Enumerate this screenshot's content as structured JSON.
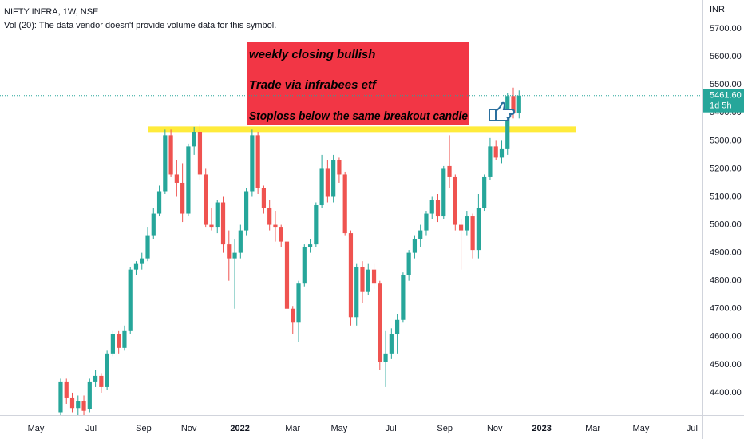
{
  "chart_data": {
    "type": "candlestick",
    "title": "NIFTY INFRA, 1W, NSE",
    "subtitle": "Vol (20): The data vendor doesn't provide volume data for this symbol.",
    "y_axis_label": "INR",
    "categories": [
      null,
      null,
      null,
      null,
      null,
      null,
      null,
      null,
      null,
      null,
      null,
      null,
      null,
      null,
      null,
      null,
      null,
      null,
      null,
      null,
      null,
      null,
      null,
      null,
      null,
      null,
      null,
      null,
      null,
      null,
      null,
      null,
      null,
      null,
      null,
      null,
      null,
      null,
      null,
      null,
      null,
      null,
      null,
      null,
      null,
      null,
      null,
      null,
      null,
      null,
      null,
      null,
      null,
      null,
      null,
      null,
      null,
      null,
      null,
      null,
      null,
      null,
      null,
      null,
      null,
      null,
      null,
      null,
      null,
      null,
      null,
      null,
      null,
      null,
      null,
      null,
      null,
      null,
      null,
      null
    ],
    "open": [
      4330,
      4440,
      4380,
      4345,
      4370,
      4340,
      4440,
      4460,
      4420,
      4540,
      4610,
      4560,
      4620,
      4840,
      4860,
      4880,
      4960,
      5040,
      5120,
      5320,
      5180,
      5150,
      5040,
      5280,
      5330,
      5180,
      5000,
      4990,
      5080,
      4930,
      4880,
      4900,
      4980,
      5120,
      5320,
      5130,
      5060,
      5000,
      4990,
      4940,
      4700,
      4650,
      4790,
      4920,
      4930,
      5070,
      5200,
      5100,
      5230,
      5180,
      4970,
      4670,
      4850,
      4760,
      4840,
      4790,
      4510,
      4540,
      4610,
      4660,
      4820,
      4900,
      4950,
      4980,
      5040,
      5090,
      5030,
      5210,
      5170,
      5000,
      4980,
      5030,
      4910,
      5060,
      5170,
      5280,
      5240,
      5270,
      5460,
      5400
    ],
    "high": [
      4450,
      4450,
      4400,
      4390,
      4390,
      4450,
      4480,
      4470,
      4550,
      4620,
      4620,
      4640,
      4850,
      4870,
      4900,
      4990,
      5060,
      5140,
      5340,
      5340,
      5230,
      5220,
      5290,
      5350,
      5360,
      5200,
      5060,
      5090,
      5100,
      4980,
      4950,
      5000,
      5130,
      5340,
      5330,
      5140,
      5090,
      5050,
      5000,
      4950,
      4710,
      4800,
      4930,
      4950,
      5080,
      5250,
      5230,
      5250,
      5240,
      5190,
      4980,
      4860,
      4870,
      4860,
      4860,
      4800,
      4620,
      4630,
      4680,
      4830,
      4910,
      4960,
      5000,
      5050,
      5100,
      5110,
      5210,
      5320,
      5180,
      5020,
      5050,
      5040,
      5110,
      5180,
      5310,
      5300,
      5300,
      5470,
      5490,
      5480
    ],
    "low": [
      4320,
      4360,
      4330,
      4320,
      4320,
      4330,
      4420,
      4400,
      4410,
      4530,
      4540,
      4550,
      4610,
      4820,
      4840,
      4870,
      4950,
      5030,
      5110,
      5170,
      5100,
      5010,
      5030,
      5250,
      5160,
      4990,
      4980,
      4970,
      4900,
      4800,
      4700,
      4880,
      4960,
      5100,
      5110,
      5040,
      4980,
      4940,
      4920,
      4660,
      4610,
      4580,
      4780,
      4900,
      4920,
      5060,
      5080,
      5080,
      5150,
      4960,
      4640,
      4640,
      4720,
      4750,
      4770,
      4480,
      4420,
      4520,
      4540,
      4650,
      4800,
      4880,
      4920,
      4960,
      5020,
      5010,
      5020,
      5130,
      4980,
      4840,
      4960,
      4880,
      4880,
      5050,
      5160,
      5230,
      5220,
      5250,
      5380,
      5380
    ],
    "close": [
      4440,
      4380,
      4345,
      4370,
      4335,
      4440,
      4460,
      4420,
      4540,
      4610,
      4560,
      4620,
      4840,
      4860,
      4880,
      4960,
      5040,
      5120,
      5320,
      5180,
      5150,
      5040,
      5280,
      5330,
      5180,
      5000,
      4990,
      5080,
      4930,
      4880,
      4900,
      4980,
      5120,
      5320,
      5130,
      5060,
      5000,
      4990,
      4940,
      4700,
      4650,
      4790,
      4920,
      4930,
      5070,
      5200,
      5100,
      5230,
      5180,
      4970,
      4670,
      4850,
      4760,
      4840,
      4790,
      4510,
      4540,
      4610,
      4660,
      4820,
      4900,
      4950,
      4980,
      5040,
      5090,
      5030,
      5200,
      5170,
      5000,
      4980,
      5030,
      4910,
      5060,
      5170,
      5280,
      5240,
      5270,
      5460,
      5400,
      5461.6
    ],
    "up_color": "#26a69a",
    "down_color": "#ef5350",
    "ylim": [
      4320,
      5803
    ],
    "yticks": [
      {
        "value": 4400,
        "label": "4400.00"
      },
      {
        "value": 4500,
        "label": "4500.00"
      },
      {
        "value": 4600,
        "label": "4600.00"
      },
      {
        "value": 4700,
        "label": "4700.00"
      },
      {
        "value": 4800,
        "label": "4800.00"
      },
      {
        "value": 4900,
        "label": "4900.00"
      },
      {
        "value": 5000,
        "label": "5000.00"
      },
      {
        "value": 5100,
        "label": "5100.00"
      },
      {
        "value": 5200,
        "label": "5200.00"
      },
      {
        "value": 5300,
        "label": "5300.00"
      },
      {
        "value": 5400,
        "label": "5400.00"
      },
      {
        "value": 5500,
        "label": "5500.00"
      },
      {
        "value": 5600,
        "label": "5600.00"
      },
      {
        "value": 5700,
        "label": "5700.00"
      }
    ],
    "xlim": [
      -10.45,
      110.6
    ],
    "xticks": [
      {
        "value": -4.26,
        "label": "May"
      },
      {
        "value": 5.23,
        "label": "Jul"
      },
      {
        "value": 14.3,
        "label": "Sep"
      },
      {
        "value": 22.1,
        "label": "Nov"
      },
      {
        "value": 30.9,
        "label": "2022"
      },
      {
        "value": 40.0,
        "label": "Mar"
      },
      {
        "value": 48.0,
        "label": "May"
      },
      {
        "value": 56.9,
        "label": "Jul"
      },
      {
        "value": 66.2,
        "label": "Sep"
      },
      {
        "value": 74.8,
        "label": "Nov"
      },
      {
        "value": 82.9,
        "label": "2023"
      },
      {
        "value": 91.7,
        "label": "Mar"
      },
      {
        "value": 100.0,
        "label": "May"
      },
      {
        "value": 108.8,
        "label": "Jul"
      }
    ],
    "last_price": {
      "value": 5461.6,
      "label": "5461.60"
    },
    "countdown": "1d 5h",
    "hline": {
      "value": 5340,
      "color": "#ffeb3b"
    },
    "note_color": "#f23645",
    "annotations": [
      "weekly closing bullish",
      "Trade via infrabees etf",
      "Stoploss below the same breakout candle"
    ]
  }
}
